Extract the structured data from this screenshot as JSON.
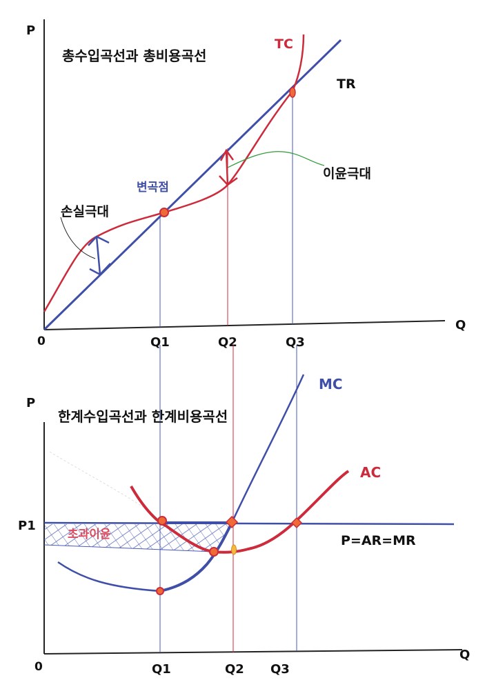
{
  "top_panel": {
    "title": "총수입곡선과 총비용곡선",
    "y_axis_label": "P",
    "x_axis_label": "Q",
    "origin_label": "0",
    "tc_label": "TC",
    "tr_label": "TR",
    "inflection_label": "변곡점",
    "max_loss_label": "손실극대",
    "max_profit_label": "이윤극대",
    "q_ticks": [
      "Q1",
      "Q2",
      "Q3"
    ]
  },
  "bottom_panel": {
    "title": "한계수입곡선과 한계비용곡선",
    "y_axis_label": "P",
    "x_axis_label": "Q",
    "origin_label": "0",
    "mc_label": "MC",
    "ac_label": "AC",
    "price_label": "P1",
    "mr_label": "P=AR=MR",
    "excess_profit_label": "초과이윤",
    "q_ticks": [
      "Q1",
      "Q2",
      "Q3"
    ]
  },
  "colors": {
    "blue": "#3f4fa8",
    "red": "#cc2b3b",
    "green": "#2f9a3a",
    "dot_fill": "#ef6b35",
    "axis": "#222222"
  }
}
